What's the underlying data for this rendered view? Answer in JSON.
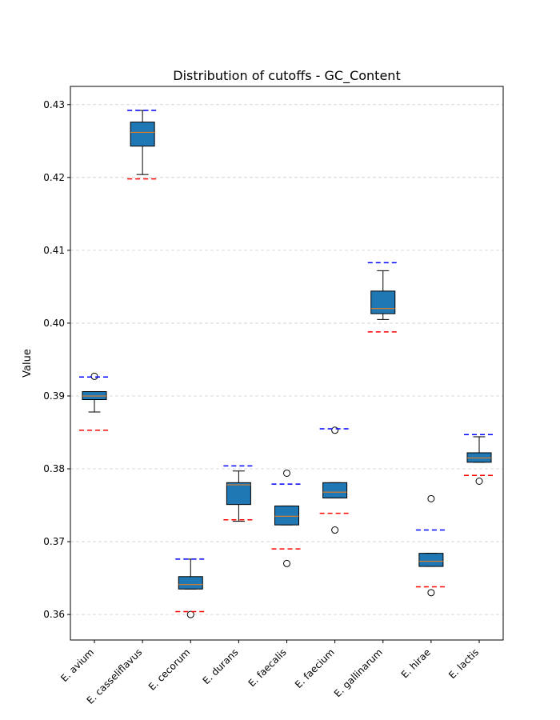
{
  "chart_data": {
    "type": "box",
    "title": "Distribution of cutoffs - GC_Content",
    "xlabel": "",
    "ylabel": "Value",
    "ylim": [
      0.3565,
      0.4325
    ],
    "yticks": [
      0.36,
      0.37,
      0.38,
      0.39,
      0.4,
      0.41,
      0.42,
      0.43
    ],
    "ytick_labels": [
      "0.36",
      "0.37",
      "0.38",
      "0.39",
      "0.40",
      "0.41",
      "0.42",
      "0.43"
    ],
    "grid": "horizontal dashed",
    "box_color": "#1f77b4",
    "median_color": "#ff7f0e",
    "upper_cutoff_color": "#0000ff",
    "lower_cutoff_color": "#ff0000",
    "categories": [
      "E. avium",
      "E. casseliflavus",
      "E. cecorum",
      "E. durans",
      "E. faecalis",
      "E. faecium",
      "E. gallinarum",
      "E. hirae",
      "E. lactis"
    ],
    "boxes": [
      {
        "whislo": 0.3878,
        "q1": 0.3895,
        "med": 0.39,
        "q3": 0.3906,
        "whishi": 0.3906,
        "fliers": [
          0.3927
        ],
        "upper_cutoff": 0.3926,
        "lower_cutoff": 0.3853
      },
      {
        "whislo": 0.4204,
        "q1": 0.4243,
        "med": 0.4262,
        "q3": 0.4276,
        "whishi": 0.4292,
        "fliers": [],
        "upper_cutoff": 0.4292,
        "lower_cutoff": 0.4198
      },
      {
        "whislo": 0.3635,
        "q1": 0.3635,
        "med": 0.3641,
        "q3": 0.3652,
        "whishi": 0.3676,
        "fliers": [
          0.36
        ],
        "upper_cutoff": 0.3676,
        "lower_cutoff": 0.3604
      },
      {
        "whislo": 0.3728,
        "q1": 0.3751,
        "med": 0.3778,
        "q3": 0.3781,
        "whishi": 0.3797,
        "fliers": [],
        "upper_cutoff": 0.3804,
        "lower_cutoff": 0.373
      },
      {
        "whislo": 0.3723,
        "q1": 0.3723,
        "med": 0.3735,
        "q3": 0.3749,
        "whishi": 0.3749,
        "fliers": [
          0.367,
          0.3794
        ],
        "upper_cutoff": 0.3779,
        "lower_cutoff": 0.369
      },
      {
        "whislo": 0.376,
        "q1": 0.376,
        "med": 0.3768,
        "q3": 0.3781,
        "whishi": 0.3781,
        "fliers": [
          0.3716,
          0.3853
        ],
        "upper_cutoff": 0.3855,
        "lower_cutoff": 0.3739
      },
      {
        "whislo": 0.4005,
        "q1": 0.4013,
        "med": 0.402,
        "q3": 0.4044,
        "whishi": 0.4072,
        "fliers": [],
        "upper_cutoff": 0.4083,
        "lower_cutoff": 0.3988
      },
      {
        "whislo": 0.3666,
        "q1": 0.3666,
        "med": 0.3673,
        "q3": 0.3684,
        "whishi": 0.3684,
        "fliers": [
          0.363,
          0.3759
        ],
        "upper_cutoff": 0.3716,
        "lower_cutoff": 0.3638
      },
      {
        "whislo": 0.3809,
        "q1": 0.3809,
        "med": 0.3815,
        "q3": 0.3822,
        "whishi": 0.3844,
        "fliers": [
          0.3783
        ],
        "upper_cutoff": 0.3847,
        "lower_cutoff": 0.3791
      }
    ]
  }
}
